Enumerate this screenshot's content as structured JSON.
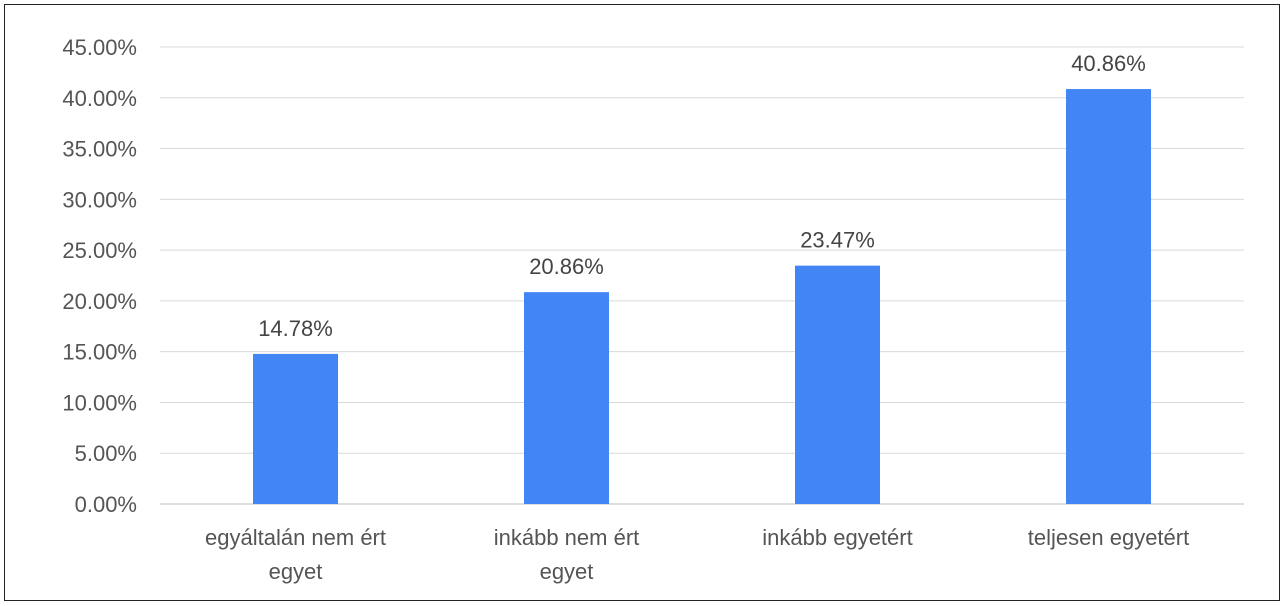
{
  "chart_data": {
    "type": "bar",
    "categories": [
      [
        "egyáltalán nem ért",
        "egyet"
      ],
      [
        "inkább nem ért",
        "egyet"
      ],
      [
        "inkább egyetért"
      ],
      [
        "teljesen egyetért"
      ]
    ],
    "values": [
      14.78,
      20.86,
      23.47,
      40.86
    ],
    "data_labels": [
      "14.78%",
      "20.86%",
      "23.47%",
      "40.86%"
    ],
    "yticks": [
      "0.00%",
      "5.00%",
      "10.00%",
      "15.00%",
      "20.00%",
      "25.00%",
      "30.00%",
      "35.00%",
      "40.00%",
      "45.00%"
    ],
    "ylim": [
      0,
      45
    ],
    "grid": true,
    "legend": "none",
    "bar_color": "#4285F4",
    "grid_color": "#d9d9d9"
  }
}
